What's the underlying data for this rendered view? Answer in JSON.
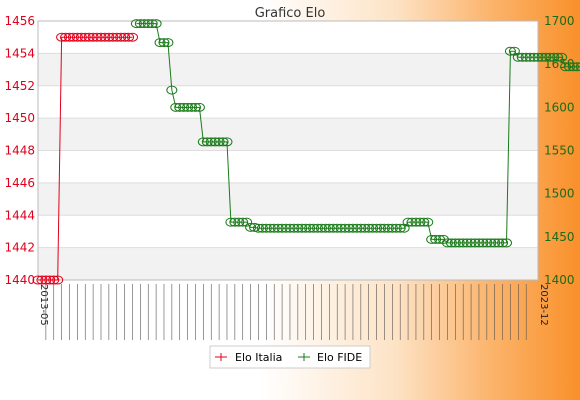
{
  "chart_data": {
    "type": "line",
    "title": "Grafico Elo",
    "y_left": {
      "min": 1440,
      "max": 1456,
      "ticks": [
        1440,
        1442,
        1444,
        1446,
        1448,
        1450,
        1452,
        1454,
        1456
      ]
    },
    "y_right": {
      "min": 1400,
      "max": 1700,
      "ticks": [
        1400,
        1450,
        1500,
        1550,
        1600,
        1650,
        1700
      ]
    },
    "x_first_label": "2013-05",
    "x_last_label": "2023-12",
    "x_count": 128,
    "grid": true,
    "legend_position": "bottom",
    "series": [
      {
        "name": "Elo Italia",
        "axis": "left",
        "color": "#e0001b",
        "values": [
          1440,
          1440,
          1440,
          1440,
          1440,
          1440,
          1455,
          1455,
          1455,
          1455,
          1455,
          1455,
          1455,
          1455,
          1455,
          1455,
          1455,
          1455,
          1455,
          1455,
          1455,
          1455,
          1455,
          1455,
          1455
        ]
      },
      {
        "name": "Elo FIDE",
        "axis": "right",
        "color": "#1b7a1b",
        "values": [
          null,
          null,
          null,
          null,
          null,
          null,
          null,
          null,
          null,
          null,
          null,
          null,
          null,
          null,
          null,
          null,
          null,
          null,
          null,
          null,
          null,
          null,
          null,
          null,
          null,
          1697,
          1697,
          1697,
          1697,
          1697,
          1697,
          1675,
          1675,
          1675,
          1620,
          1600,
          1600,
          1600,
          1600,
          1600,
          1600,
          1600,
          1560,
          1560,
          1560,
          1560,
          1560,
          1560,
          1560,
          1467,
          1467,
          1467,
          1467,
          1467,
          1461,
          1461,
          1460,
          1460,
          1460,
          1460,
          1460,
          1460,
          1460,
          1460,
          1460,
          1460,
          1460,
          1460,
          1460,
          1460,
          1460,
          1460,
          1460,
          1460,
          1460,
          1460,
          1460,
          1460,
          1460,
          1460,
          1460,
          1460,
          1460,
          1460,
          1460,
          1460,
          1460,
          1460,
          1460,
          1460,
          1460,
          1460,
          1460,
          1460,
          1467,
          1467,
          1467,
          1467,
          1467,
          1467,
          1447,
          1447,
          1447,
          1447,
          1443,
          1443,
          1443,
          1443,
          1443,
          1443,
          1443,
          1443,
          1443,
          1443,
          1443,
          1443,
          1443,
          1443,
          1443,
          1443,
          1665,
          1665,
          1658,
          1658,
          1658,
          1658,
          1658,
          1658,
          1658,
          1658,
          1658,
          1658,
          1658,
          1658,
          1647,
          1647,
          1647,
          1647,
          1647,
          1647
        ]
      }
    ]
  }
}
